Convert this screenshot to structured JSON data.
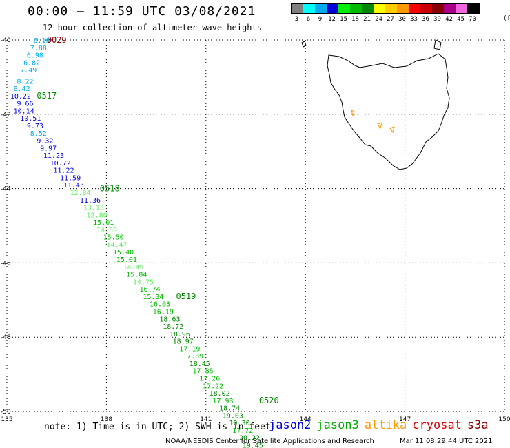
{
  "header": {
    "title": "00:00 – 11:59 UTC 03/08/2021",
    "subtitle": "12 hour collection of altimeter wave heights"
  },
  "legend": {
    "labels": [
      "3",
      "6",
      "9",
      "12",
      "15",
      "18",
      "21",
      "24",
      "27",
      "30",
      "33",
      "36",
      "39",
      "42",
      "45",
      "70"
    ],
    "unit": "(ft)",
    "colors": [
      "#7f7f7f",
      "#00ffff",
      "#00aaee",
      "#0000dd",
      "#00ee00",
      "#00bb00",
      "#008800",
      "#ffff00",
      "#ffcc00",
      "#ff9900",
      "#ff0000",
      "#cc0000",
      "#880000",
      "#aa0088",
      "#ee66dd",
      "#000000"
    ]
  },
  "axes": {
    "lon_ticks": [
      "135",
      "138",
      "141",
      "144",
      "147",
      "150"
    ],
    "lat_ticks": [
      "-40",
      "-42",
      "-44",
      "-46",
      "-48",
      "-50"
    ]
  },
  "chart_data": {
    "type": "scatter",
    "x_unit": "degrees longitude",
    "y_unit": "degrees latitude",
    "xlim": [
      135,
      150
    ],
    "ylim": [
      -50,
      -40
    ],
    "grid": true,
    "points": [
      {
        "lon": 135.8,
        "lat": -40.0,
        "swh": "6.16",
        "color": "#00aaee"
      },
      {
        "lon": 135.7,
        "lat": -40.2,
        "swh": "7.88",
        "color": "#00aaee"
      },
      {
        "lon": 135.6,
        "lat": -40.4,
        "swh": "6.98",
        "color": "#00aaee"
      },
      {
        "lon": 135.5,
        "lat": -40.6,
        "swh": "6.82",
        "color": "#00aaee"
      },
      {
        "lon": 135.4,
        "lat": -40.8,
        "swh": "7.49",
        "color": "#00aaee"
      },
      {
        "lon": 135.3,
        "lat": -41.1,
        "swh": "8.22",
        "color": "#00aaee"
      },
      {
        "lon": 135.2,
        "lat": -41.3,
        "swh": "8.42",
        "color": "#00aaee"
      },
      {
        "lon": 135.1,
        "lat": -41.5,
        "swh": "10.22",
        "color": "#0000dd"
      },
      {
        "lon": 135.3,
        "lat": -41.7,
        "swh": "9.66",
        "color": "#0000dd"
      },
      {
        "lon": 135.2,
        "lat": -41.9,
        "swh": "10.14",
        "color": "#0000dd"
      },
      {
        "lon": 135.4,
        "lat": -42.1,
        "swh": "10.51",
        "color": "#0000dd"
      },
      {
        "lon": 135.6,
        "lat": -42.3,
        "swh": "9.73",
        "color": "#0000dd"
      },
      {
        "lon": 135.7,
        "lat": -42.5,
        "swh": "8.52",
        "color": "#00aaee"
      },
      {
        "lon": 135.9,
        "lat": -42.7,
        "swh": "9.32",
        "color": "#0000dd"
      },
      {
        "lon": 136.0,
        "lat": -42.9,
        "swh": "9.97",
        "color": "#0000dd"
      },
      {
        "lon": 136.1,
        "lat": -43.1,
        "swh": "11.23",
        "color": "#0000dd"
      },
      {
        "lon": 136.3,
        "lat": -43.3,
        "swh": "10.72",
        "color": "#0000dd"
      },
      {
        "lon": 136.4,
        "lat": -43.5,
        "swh": "11.22",
        "color": "#0000dd"
      },
      {
        "lon": 136.6,
        "lat": -43.7,
        "swh": "11.59",
        "color": "#0000dd"
      },
      {
        "lon": 136.7,
        "lat": -43.9,
        "swh": "11.43",
        "color": "#0000dd"
      },
      {
        "lon": 136.9,
        "lat": -44.1,
        "swh": "12.84",
        "color": "#66ee66"
      },
      {
        "lon": 137.2,
        "lat": -44.3,
        "swh": "11.36",
        "color": "#0000dd"
      },
      {
        "lon": 137.3,
        "lat": -44.5,
        "swh": "13.13",
        "color": "#66ee66"
      },
      {
        "lon": 137.4,
        "lat": -44.7,
        "swh": "12.80",
        "color": "#66ee66"
      },
      {
        "lon": 137.6,
        "lat": -44.9,
        "swh": "15.01",
        "color": "#00bb00"
      },
      {
        "lon": 137.7,
        "lat": -45.1,
        "swh": "14.89",
        "color": "#66ee66"
      },
      {
        "lon": 137.9,
        "lat": -45.3,
        "swh": "15.50",
        "color": "#00bb00"
      },
      {
        "lon": 138.0,
        "lat": -45.5,
        "swh": "14.47",
        "color": "#66ee66"
      },
      {
        "lon": 138.2,
        "lat": -45.7,
        "swh": "15.40",
        "color": "#00bb00"
      },
      {
        "lon": 138.3,
        "lat": -45.9,
        "swh": "15.01",
        "color": "#00bb00"
      },
      {
        "lon": 138.5,
        "lat": -46.1,
        "swh": "14.49",
        "color": "#66ee66"
      },
      {
        "lon": 138.6,
        "lat": -46.3,
        "swh": "15.84",
        "color": "#00bb00"
      },
      {
        "lon": 138.8,
        "lat": -46.5,
        "swh": "14.75",
        "color": "#66ee66"
      },
      {
        "lon": 139.0,
        "lat": -46.7,
        "swh": "16.74",
        "color": "#00bb00"
      },
      {
        "lon": 139.1,
        "lat": -46.9,
        "swh": "15.34",
        "color": "#00bb00"
      },
      {
        "lon": 139.3,
        "lat": -47.1,
        "swh": "16.03",
        "color": "#00bb00"
      },
      {
        "lon": 139.4,
        "lat": -47.3,
        "swh": "16.19",
        "color": "#00bb00"
      },
      {
        "lon": 139.6,
        "lat": -47.5,
        "swh": "18.63",
        "color": "#008800"
      },
      {
        "lon": 139.7,
        "lat": -47.7,
        "swh": "18.72",
        "color": "#008800"
      },
      {
        "lon": 139.9,
        "lat": -47.9,
        "swh": "18.96",
        "color": "#008800"
      },
      {
        "lon": 140.0,
        "lat": -48.1,
        "swh": "18.97",
        "color": "#008800"
      },
      {
        "lon": 140.2,
        "lat": -48.3,
        "swh": "17.19",
        "color": "#00bb00"
      },
      {
        "lon": 140.3,
        "lat": -48.5,
        "swh": "17.89",
        "color": "#00bb00"
      },
      {
        "lon": 140.5,
        "lat": -48.7,
        "swh": "18.45",
        "color": "#008800"
      },
      {
        "lon": 140.6,
        "lat": -48.9,
        "swh": "17.85",
        "color": "#00bb00"
      },
      {
        "lon": 140.8,
        "lat": -49.1,
        "swh": "17.26",
        "color": "#00bb00"
      },
      {
        "lon": 140.9,
        "lat": -49.3,
        "swh": "17.22",
        "color": "#00bb00"
      },
      {
        "lon": 141.1,
        "lat": -49.5,
        "swh": "18.02",
        "color": "#008800"
      },
      {
        "lon": 141.2,
        "lat": -49.7,
        "swh": "17.93",
        "color": "#00bb00"
      },
      {
        "lon": 141.4,
        "lat": -49.9,
        "swh": "18.74",
        "color": "#008800"
      },
      {
        "lon": 141.5,
        "lat": -50.1,
        "swh": "19.03",
        "color": "#008800"
      },
      {
        "lon": 141.7,
        "lat": -50.3,
        "swh": "19.30",
        "color": "#008800"
      },
      {
        "lon": 141.8,
        "lat": -50.5,
        "swh": "17.72",
        "color": "#00bb00"
      },
      {
        "lon": 142.0,
        "lat": -50.7,
        "swh": "20.22",
        "color": "#008800"
      },
      {
        "lon": 142.1,
        "lat": -50.9,
        "swh": "19.45",
        "color": "#008800"
      }
    ],
    "time_marks": [
      {
        "label": "0029",
        "lon": 136.2,
        "lat": -40.0,
        "color": "#880000"
      },
      {
        "label": "0517",
        "lon": 135.9,
        "lat": -41.5,
        "color": "#008800"
      },
      {
        "label": "0518",
        "lon": 137.8,
        "lat": -44.0,
        "color": "#008800"
      },
      {
        "label": "0519",
        "lon": 140.1,
        "lat": -46.9,
        "color": "#008800"
      },
      {
        "label": "0520",
        "lon": 142.6,
        "lat": -49.7,
        "color": "#008800"
      }
    ]
  },
  "satellites": [
    {
      "name": "jason2",
      "color": "#0000dd"
    },
    {
      "name": "jason3",
      "color": "#00aa00"
    },
    {
      "name": "altika",
      "color": "#ff9900"
    },
    {
      "name": "cryosat",
      "color": "#dd0000"
    },
    {
      "name": "s3a",
      "color": "#880000"
    }
  ],
  "footer": {
    "note": "note: 1) Time is in UTC; 2) SWH is in feet",
    "credit": "NOAA/NESDIS Center for Satellite Applications and Research",
    "timestamp": "Mar 11 08:29:44 UTC 2021"
  }
}
